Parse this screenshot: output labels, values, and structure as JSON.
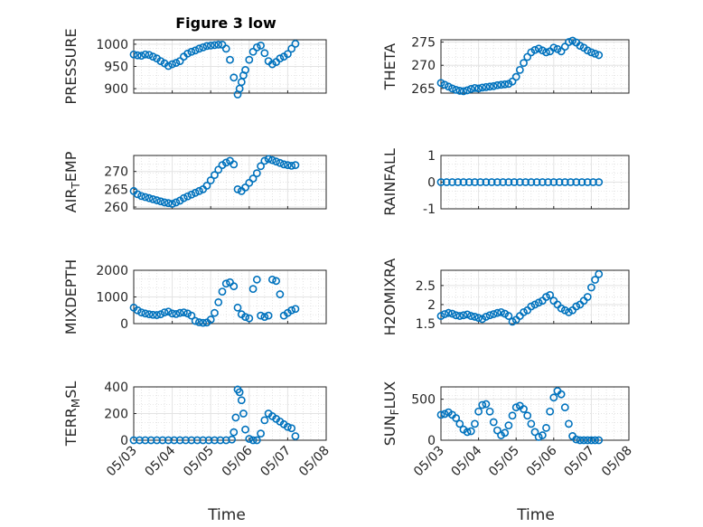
{
  "title": "Figure 3 low",
  "marker_color": "#0072BD",
  "grid_color": "#d9d9d9",
  "chart_data": [
    {
      "type": "scatter",
      "name": "PRESSURE",
      "ylabel": "PRESSURE",
      "ylim": [
        890,
        1010
      ],
      "yticks": [
        900,
        950,
        1000
      ],
      "xlim": [
        "05/03",
        "05/08"
      ],
      "xticks": [
        "05/03",
        "05/04",
        "05/05",
        "05/06",
        "05/07",
        "05/08"
      ],
      "x": [
        0.0,
        0.1,
        0.2,
        0.3,
        0.4,
        0.5,
        0.6,
        0.7,
        0.8,
        0.9,
        1.0,
        1.1,
        1.2,
        1.3,
        1.4,
        1.5,
        1.6,
        1.7,
        1.8,
        1.9,
        2.0,
        2.1,
        2.2,
        2.3,
        2.4,
        2.5,
        2.6,
        2.7,
        2.75,
        2.8,
        2.85,
        2.9,
        3.0,
        3.1,
        3.2,
        3.3,
        3.4,
        3.5,
        3.6,
        3.7,
        3.8,
        3.9,
        4.0,
        4.1,
        4.2
      ],
      "y": [
        977,
        975,
        974,
        977,
        976,
        972,
        968,
        962,
        957,
        951,
        955,
        958,
        962,
        972,
        979,
        983,
        986,
        990,
        993,
        996,
        997,
        998,
        999,
        999,
        990,
        965,
        925,
        887,
        900,
        915,
        930,
        942,
        965,
        983,
        993,
        997,
        980,
        962,
        955,
        960,
        968,
        972,
        978,
        990,
        1001
      ]
    },
    {
      "type": "scatter",
      "name": "THETA",
      "ylabel": "THETA",
      "ylim": [
        264,
        275.5
      ],
      "yticks": [
        265,
        270,
        275
      ],
      "xlim": [
        "05/03",
        "05/08"
      ],
      "xticks": [
        "05/03",
        "05/04",
        "05/05",
        "05/06",
        "05/07",
        "05/08"
      ],
      "x": [
        0.0,
        0.1,
        0.2,
        0.3,
        0.4,
        0.5,
        0.6,
        0.7,
        0.8,
        0.9,
        1.0,
        1.1,
        1.2,
        1.3,
        1.4,
        1.5,
        1.6,
        1.7,
        1.8,
        1.9,
        2.0,
        2.1,
        2.2,
        2.3,
        2.4,
        2.5,
        2.6,
        2.7,
        2.8,
        2.9,
        3.0,
        3.1,
        3.2,
        3.3,
        3.4,
        3.5,
        3.6,
        3.7,
        3.8,
        3.9,
        4.0,
        4.1,
        4.2
      ],
      "y": [
        266.2,
        265.8,
        265.4,
        265.0,
        264.7,
        264.5,
        264.4,
        264.6,
        264.9,
        265.1,
        265.0,
        265.2,
        265.3,
        265.4,
        265.5,
        265.7,
        265.8,
        265.9,
        266.0,
        266.5,
        267.5,
        269.0,
        270.5,
        271.8,
        272.8,
        273.3,
        273.6,
        273.2,
        272.8,
        273.0,
        273.8,
        273.5,
        273.0,
        274.0,
        275.0,
        275.3,
        274.9,
        274.2,
        273.8,
        273.2,
        272.8,
        272.5,
        272.2
      ]
    },
    {
      "type": "scatter",
      "name": "AIR_TEMP",
      "ylabel": "AIR_TEMP",
      "ylim": [
        259.5,
        274.5
      ],
      "yticks": [
        260,
        265,
        270
      ],
      "xlim": [
        "05/03",
        "05/08"
      ],
      "xticks": [
        "05/03",
        "05/04",
        "05/05",
        "05/06",
        "05/07",
        "05/08"
      ],
      "x": [
        0.0,
        0.1,
        0.2,
        0.3,
        0.4,
        0.5,
        0.6,
        0.7,
        0.8,
        0.9,
        1.0,
        1.1,
        1.2,
        1.3,
        1.4,
        1.5,
        1.6,
        1.7,
        1.8,
        1.9,
        2.0,
        2.1,
        2.2,
        2.3,
        2.4,
        2.5,
        2.6,
        2.7,
        2.8,
        2.9,
        3.0,
        3.1,
        3.2,
        3.3,
        3.4,
        3.5,
        3.6,
        3.7,
        3.8,
        3.9,
        4.0,
        4.1,
        4.2
      ],
      "y": [
        264.5,
        263.6,
        263.1,
        262.8,
        262.5,
        262.2,
        261.9,
        261.6,
        261.3,
        261.1,
        260.9,
        261.3,
        261.8,
        262.5,
        263.0,
        263.5,
        264.0,
        264.5,
        265.0,
        266.0,
        267.5,
        269.0,
        270.5,
        271.8,
        272.5,
        273.0,
        272.0,
        265.0,
        264.5,
        265.5,
        266.8,
        268.0,
        269.5,
        271.5,
        273.0,
        273.5,
        273.2,
        272.8,
        272.4,
        272.0,
        271.8,
        271.6,
        271.8
      ]
    },
    {
      "type": "scatter",
      "name": "RAINFALL",
      "ylabel": "RAINFALL",
      "ylim": [
        -1,
        1
      ],
      "yticks": [
        -1,
        0,
        1
      ],
      "xlim": [
        "05/03",
        "05/08"
      ],
      "xticks": [
        "05/03",
        "05/04",
        "05/05",
        "05/06",
        "05/07",
        "05/08"
      ],
      "x": [
        0.0,
        0.15,
        0.3,
        0.45,
        0.6,
        0.75,
        0.9,
        1.05,
        1.2,
        1.35,
        1.5,
        1.65,
        1.8,
        1.95,
        2.1,
        2.25,
        2.4,
        2.55,
        2.7,
        2.85,
        3.0,
        3.15,
        3.3,
        3.45,
        3.6,
        3.75,
        3.9,
        4.05,
        4.2
      ],
      "y": [
        0,
        0,
        0,
        0,
        0,
        0,
        0,
        0,
        0,
        0,
        0,
        0,
        0,
        0,
        0,
        0,
        0,
        0,
        0,
        0,
        0,
        0,
        0,
        0,
        0,
        0,
        0,
        0,
        0
      ]
    },
    {
      "type": "scatter",
      "name": "MIXDEPTH",
      "ylabel": "MIXDEPTH",
      "ylim": [
        0,
        2000
      ],
      "yticks": [
        0,
        1000,
        2000
      ],
      "xlim": [
        "05/03",
        "05/08"
      ],
      "xticks": [
        "05/03",
        "05/04",
        "05/05",
        "05/06",
        "05/07",
        "05/08"
      ],
      "x": [
        0.0,
        0.1,
        0.2,
        0.3,
        0.4,
        0.5,
        0.6,
        0.7,
        0.8,
        0.9,
        1.0,
        1.1,
        1.2,
        1.3,
        1.4,
        1.5,
        1.6,
        1.7,
        1.8,
        1.9,
        2.0,
        2.1,
        2.2,
        2.3,
        2.4,
        2.5,
        2.6,
        2.7,
        2.8,
        2.9,
        3.0,
        3.1,
        3.2,
        3.3,
        3.4,
        3.5,
        3.6,
        3.7,
        3.8,
        3.9,
        4.0,
        4.1,
        4.2
      ],
      "y": [
        600,
        500,
        420,
        380,
        350,
        330,
        320,
        350,
        420,
        450,
        380,
        360,
        400,
        420,
        380,
        300,
        100,
        50,
        30,
        40,
        150,
        400,
        800,
        1200,
        1500,
        1550,
        1400,
        600,
        350,
        250,
        200,
        1300,
        1650,
        300,
        250,
        300,
        1650,
        1600,
        1100,
        300,
        400,
        500,
        550
      ]
    },
    {
      "type": "scatter",
      "name": "H2OMIXRA",
      "ylabel": "H2OMIXRA",
      "ylim": [
        1.5,
        2.9
      ],
      "yticks": [
        1.5,
        2,
        2.5
      ],
      "xlim": [
        "05/03",
        "05/08"
      ],
      "xticks": [
        "05/03",
        "05/04",
        "05/05",
        "05/06",
        "05/07",
        "05/08"
      ],
      "x": [
        0.0,
        0.1,
        0.2,
        0.3,
        0.4,
        0.5,
        0.6,
        0.7,
        0.8,
        0.9,
        1.0,
        1.1,
        1.2,
        1.3,
        1.4,
        1.5,
        1.6,
        1.7,
        1.8,
        1.9,
        2.0,
        2.1,
        2.2,
        2.3,
        2.4,
        2.5,
        2.6,
        2.7,
        2.8,
        2.9,
        3.0,
        3.1,
        3.2,
        3.3,
        3.4,
        3.5,
        3.6,
        3.7,
        3.8,
        3.9,
        4.0,
        4.1,
        4.2
      ],
      "y": [
        1.7,
        1.75,
        1.78,
        1.76,
        1.72,
        1.7,
        1.72,
        1.74,
        1.7,
        1.68,
        1.65,
        1.62,
        1.68,
        1.72,
        1.75,
        1.78,
        1.8,
        1.76,
        1.7,
        1.55,
        1.6,
        1.7,
        1.8,
        1.85,
        1.95,
        2.0,
        2.05,
        2.1,
        2.2,
        2.25,
        2.1,
        2.0,
        1.9,
        1.85,
        1.8,
        1.85,
        1.95,
        2.0,
        2.1,
        2.2,
        2.45,
        2.65,
        2.8
      ]
    },
    {
      "type": "scatter",
      "name": "TERR_MSL",
      "ylabel": "TERR_MSL",
      "ylim": [
        0,
        400
      ],
      "yticks": [
        0,
        200,
        400
      ],
      "xlim": [
        "05/03",
        "05/08"
      ],
      "xticks": [
        "05/03",
        "05/04",
        "05/05",
        "05/06",
        "05/07",
        "05/08"
      ],
      "x": [
        0.0,
        0.15,
        0.3,
        0.45,
        0.6,
        0.75,
        0.9,
        1.05,
        1.2,
        1.35,
        1.5,
        1.65,
        1.8,
        1.95,
        2.1,
        2.25,
        2.4,
        2.55,
        2.6,
        2.65,
        2.7,
        2.75,
        2.8,
        2.85,
        2.9,
        3.0,
        3.1,
        3.2,
        3.3,
        3.4,
        3.5,
        3.6,
        3.7,
        3.8,
        3.9,
        4.0,
        4.1,
        4.2
      ],
      "y": [
        0,
        0,
        0,
        0,
        0,
        0,
        0,
        0,
        0,
        0,
        0,
        0,
        0,
        0,
        0,
        0,
        0,
        5,
        60,
        170,
        380,
        360,
        300,
        200,
        80,
        10,
        0,
        0,
        50,
        150,
        200,
        180,
        160,
        140,
        120,
        100,
        90,
        30
      ]
    },
    {
      "type": "scatter",
      "name": "SUN_FLUX",
      "ylabel": "SUN_FLUX",
      "ylim": [
        0,
        650
      ],
      "yticks": [
        0,
        500
      ],
      "xlim": [
        "05/03",
        "05/08"
      ],
      "xticks": [
        "05/03",
        "05/04",
        "05/05",
        "05/06",
        "05/07",
        "05/08"
      ],
      "x": [
        0.0,
        0.1,
        0.2,
        0.3,
        0.4,
        0.5,
        0.6,
        0.7,
        0.8,
        0.9,
        1.0,
        1.1,
        1.2,
        1.3,
        1.4,
        1.5,
        1.6,
        1.7,
        1.8,
        1.9,
        2.0,
        2.1,
        2.2,
        2.3,
        2.4,
        2.5,
        2.6,
        2.7,
        2.8,
        2.9,
        3.0,
        3.1,
        3.2,
        3.3,
        3.4,
        3.5,
        3.6,
        3.7,
        3.8,
        3.9,
        4.0,
        4.1,
        4.2
      ],
      "y": [
        310,
        320,
        340,
        310,
        270,
        200,
        130,
        100,
        110,
        200,
        350,
        430,
        440,
        350,
        220,
        120,
        60,
        90,
        180,
        300,
        400,
        420,
        380,
        300,
        200,
        100,
        40,
        60,
        150,
        350,
        520,
        600,
        560,
        400,
        200,
        50,
        10,
        0,
        0,
        0,
        0,
        0,
        0
      ]
    }
  ],
  "xlabels": {
    "left": "Time",
    "right": "Time"
  }
}
